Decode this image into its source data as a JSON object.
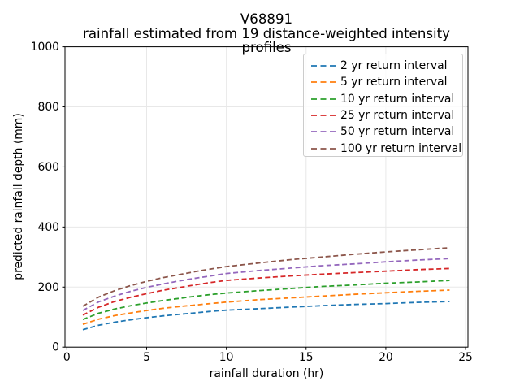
{
  "figure": {
    "background": "#ffffff",
    "text_color": "#000000",
    "grid_color": "#e8e8e8",
    "spine_color": "#000000",
    "legend_border_color": "#cccccc"
  },
  "chart_data": {
    "type": "line",
    "title": "V68891",
    "subtitle": "rainfall estimated from 19 distance-weighted intensity profiles",
    "xlabel": "rainfall duration (hr)",
    "ylabel": "predicted rainfall depth (mm)",
    "xlim": [
      -0.12,
      25.15
    ],
    "ylim": [
      0,
      1000
    ],
    "x_ticks": [
      0,
      5,
      10,
      15,
      20,
      25
    ],
    "x_tick_labels": [
      "0",
      "5",
      "10",
      "15",
      "20",
      "25"
    ],
    "y_ticks": [
      0,
      200,
      400,
      600,
      800,
      1000
    ],
    "y_tick_labels": [
      "0",
      "200",
      "400",
      "600",
      "800",
      "1000"
    ],
    "grid": true,
    "line_style": "dashed",
    "legend_position": "upper right",
    "x": [
      1,
      2,
      3,
      4,
      5,
      6,
      7,
      8,
      9,
      10,
      12,
      14,
      16,
      18,
      20,
      22,
      24
    ],
    "series": [
      {
        "name": "2 yr return interval",
        "color": "#1f77b4",
        "values": [
          58,
          73,
          83,
          91,
          98,
          104,
          109,
          114,
          119,
          123,
          128,
          133,
          138,
          142,
          145,
          149,
          152
        ]
      },
      {
        "name": "5 yr return interval",
        "color": "#ff7f0e",
        "values": [
          76,
          93,
          105,
          114,
          122,
          129,
          135,
          140,
          145,
          150,
          158,
          164,
          170,
          176,
          181,
          186,
          190
        ]
      },
      {
        "name": "10 yr return interval",
        "color": "#2ca02c",
        "values": [
          92,
          113,
          127,
          138,
          147,
          155,
          162,
          169,
          175,
          180,
          188,
          195,
          202,
          207,
          213,
          217,
          222
        ]
      },
      {
        "name": "25 yr return interval",
        "color": "#d62728",
        "values": [
          107,
          133,
          152,
          166,
          178,
          189,
          198,
          207,
          215,
          222,
          230,
          237,
          243,
          248,
          253,
          258,
          262
        ]
      },
      {
        "name": "50 yr return interval",
        "color": "#9467bd",
        "values": [
          122,
          151,
          170,
          186,
          199,
          210,
          220,
          229,
          237,
          245,
          255,
          263,
          271,
          277,
          284,
          290,
          295
        ]
      },
      {
        "name": "100 yr return interval",
        "color": "#8c564b",
        "values": [
          136,
          167,
          188,
          205,
          219,
          231,
          241,
          251,
          260,
          268,
          280,
          291,
          300,
          309,
          317,
          324,
          331
        ]
      }
    ]
  }
}
